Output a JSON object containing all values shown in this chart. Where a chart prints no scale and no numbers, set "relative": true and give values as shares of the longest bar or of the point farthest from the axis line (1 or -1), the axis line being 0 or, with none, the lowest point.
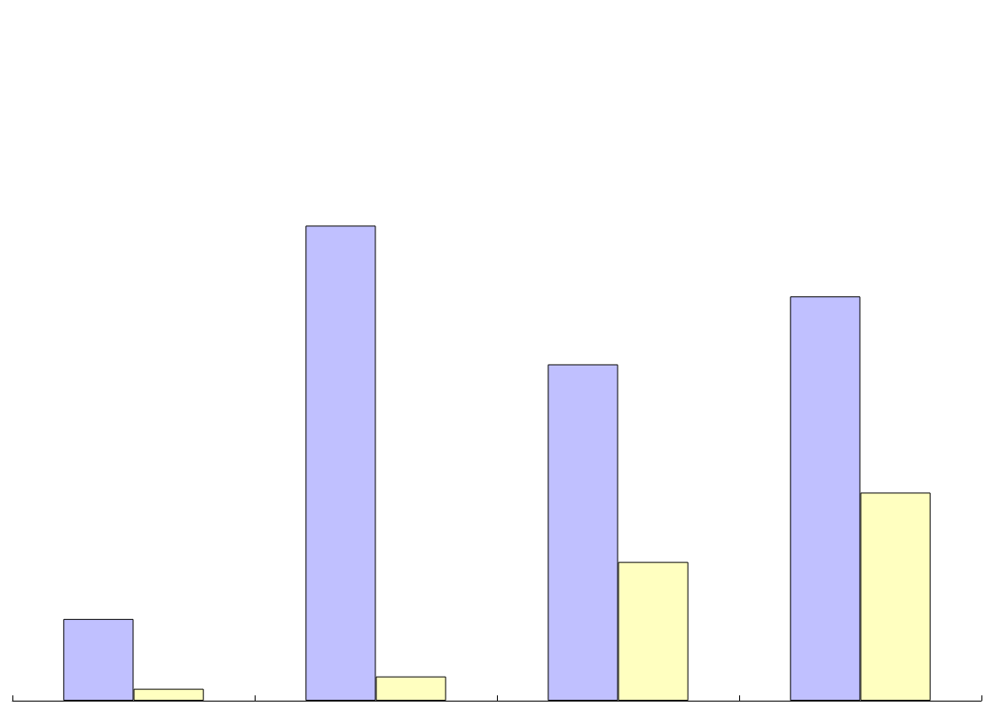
{
  "chart_data": {
    "type": "bar",
    "relative": true,
    "categories": [
      null,
      null,
      null,
      null
    ],
    "series": [
      {
        "color": "#c0c0ff",
        "values": [
          0.172,
          1,
          0.708,
          0.851
        ]
      },
      {
        "color": "#ffffc0",
        "values": [
          0.025,
          0.051,
          0.292,
          0.438
        ]
      }
    ],
    "grid": false
  }
}
